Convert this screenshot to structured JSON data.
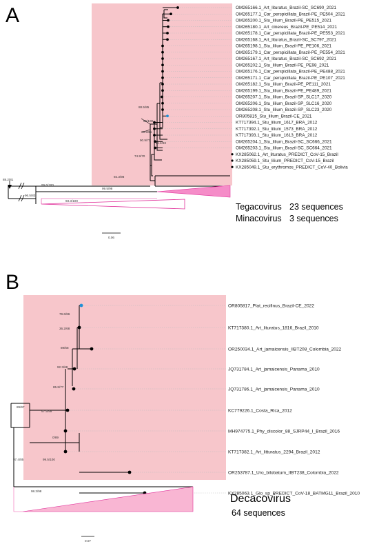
{
  "colors": {
    "highlight_text": "#1e90d6",
    "clade_fill": "#f7c6cb",
    "collapsed_fill": "#f58cc8",
    "collapsed_stroke": "#e0309a",
    "branch": "#000000"
  },
  "panel_a": {
    "label": "A",
    "leaves": [
      "OM265166.1_Art_lituratus_Brazil-SC_SC690_2021",
      "OM265177.1_Car_perspicillata_Brazil-PE_PE504_2021",
      "OM265200.1_Stu_lilium_Brazil-PE_PE515_2021",
      "OM265180.1_Art_cinereus_Brazil-PE_PE514_2021",
      "OM265178.1_Car_perspicillata_Brazil-PE_PE553_2021",
      "OM265168.1_Art_lituratus_Brazil-SC_SC797_2021",
      "OM265198.1_Stu_lilium_Brazil-PE_PE106_2021",
      "OM265179.1_Car_perspicillata_Brazil-PE_PE554_2021",
      "OM265167.1_Art_lituratus_Brazil-SC_SC692_2021",
      "OM265202.1_Stu_lilium_Brazil-PE_PE98_2021",
      "OM265176.1_Car_perspicillata_Brazil-PE_PE488_2021",
      "OM265171.1_Car_perspicillata_Brazil-PE_PE107_2021",
      "OM265182.1_Stu_lilium_Brazil-PE_PE111_2021",
      "OM265199.1_Stu_lilium_Brazil-PE_PE489_2021",
      "OM265207.1_Stu_lilium_Brazil-SP_SLC17_2020",
      "OM265206.1_Stu_lilium_Brazil-SP_SLC16_2020",
      "OM265208.1_Stu_lilium_Brazil-SP_SLC23_2020",
      "OR805815_Stu_lilium_Brazil-CE_2021",
      "KT717394.1_Stu_lilium_1617_BRA_2012",
      "KT717392.1_Stu_lilium_1573_BRA_2012",
      "KT717393.1_Stu_lilium_1613_BRA_2012",
      "OM265204.1_Stu_lilium_Brazil-SC_SC666_2021",
      "OM265203.1_Stu_lilium_Brazil-SC_SC664_2021",
      "KX285062.1_Art_lituratus_PREDICT_CoV-15_Brazil",
      "KX285059.1_Stu_lilium_PREDICT_CoV-15_Brazil",
      "KX285049.1_Stu_erythromos_PREDICT_CoV-40_Bolivia"
    ],
    "highlighted_leaf": "OR805815_Stu_lilium_Brazil-CE_2021",
    "bootstrap": {
      "b1": "88.5/85",
      "b2": "95/100",
      "b3": "76.9/85",
      "b4": "90.9/70",
      "b5": "11.2/83",
      "b6": "74.9/70",
      "b7": "92.3/98",
      "b8": "99.6/100",
      "b9": "88.2/81",
      "b10": "96.5/83",
      "b11": "99.5/98",
      "b12": "93.3/100"
    },
    "collapsed": [
      {
        "name": "Tegacovirus",
        "count": "23 sequences"
      },
      {
        "name": "Minacovirus",
        "count": "3 sequences"
      }
    ],
    "scale": "0.06"
  },
  "panel_b": {
    "label": "B",
    "leaves": [
      "OR805817_Plat_recifinus_Brazil-CE_2022",
      "KT717380.1_Art_lituratus_1816_Brazil_2010",
      "OR250034.1_Art_jamaicensis_IIBT208_Colombia_2022",
      "JQ731784.1_Art_jamaicensis_Panama_2010",
      "JQ731786.1_Art_jamaicensis_Panama_2010",
      "KC779226.1_Costa_Rica_2012",
      "MH974775.1_Phy_discolor_88_SJRP44_I_Brazil_2016",
      "KT717382.1_Art_litturatus_2294_Brazil_2012",
      "OR253787.1_Uro_bilobatum_IIBT238_Colombia_2022",
      "KX285063.1_Glo_sp_PREDICT_CoV-18_BATMG11_Brazil_2010"
    ],
    "highlighted_leaf": "OR805817_Plat_recifinus_Brazil-CE_2022",
    "bootstrap": {
      "b1": "79.6/86",
      "b2": "36.2/68",
      "b3": "89/68",
      "b4": "92.3/68",
      "b5": "85.8/77",
      "b6": "97.5/99",
      "b7": "0/89",
      "b8": "89/97",
      "b9": "97.4/85",
      "b10": "99.5/100",
      "b11": "98.3/98"
    },
    "collapsed": {
      "name": "Decacovirus",
      "count": "64 sequences"
    },
    "scale": "0.07"
  }
}
